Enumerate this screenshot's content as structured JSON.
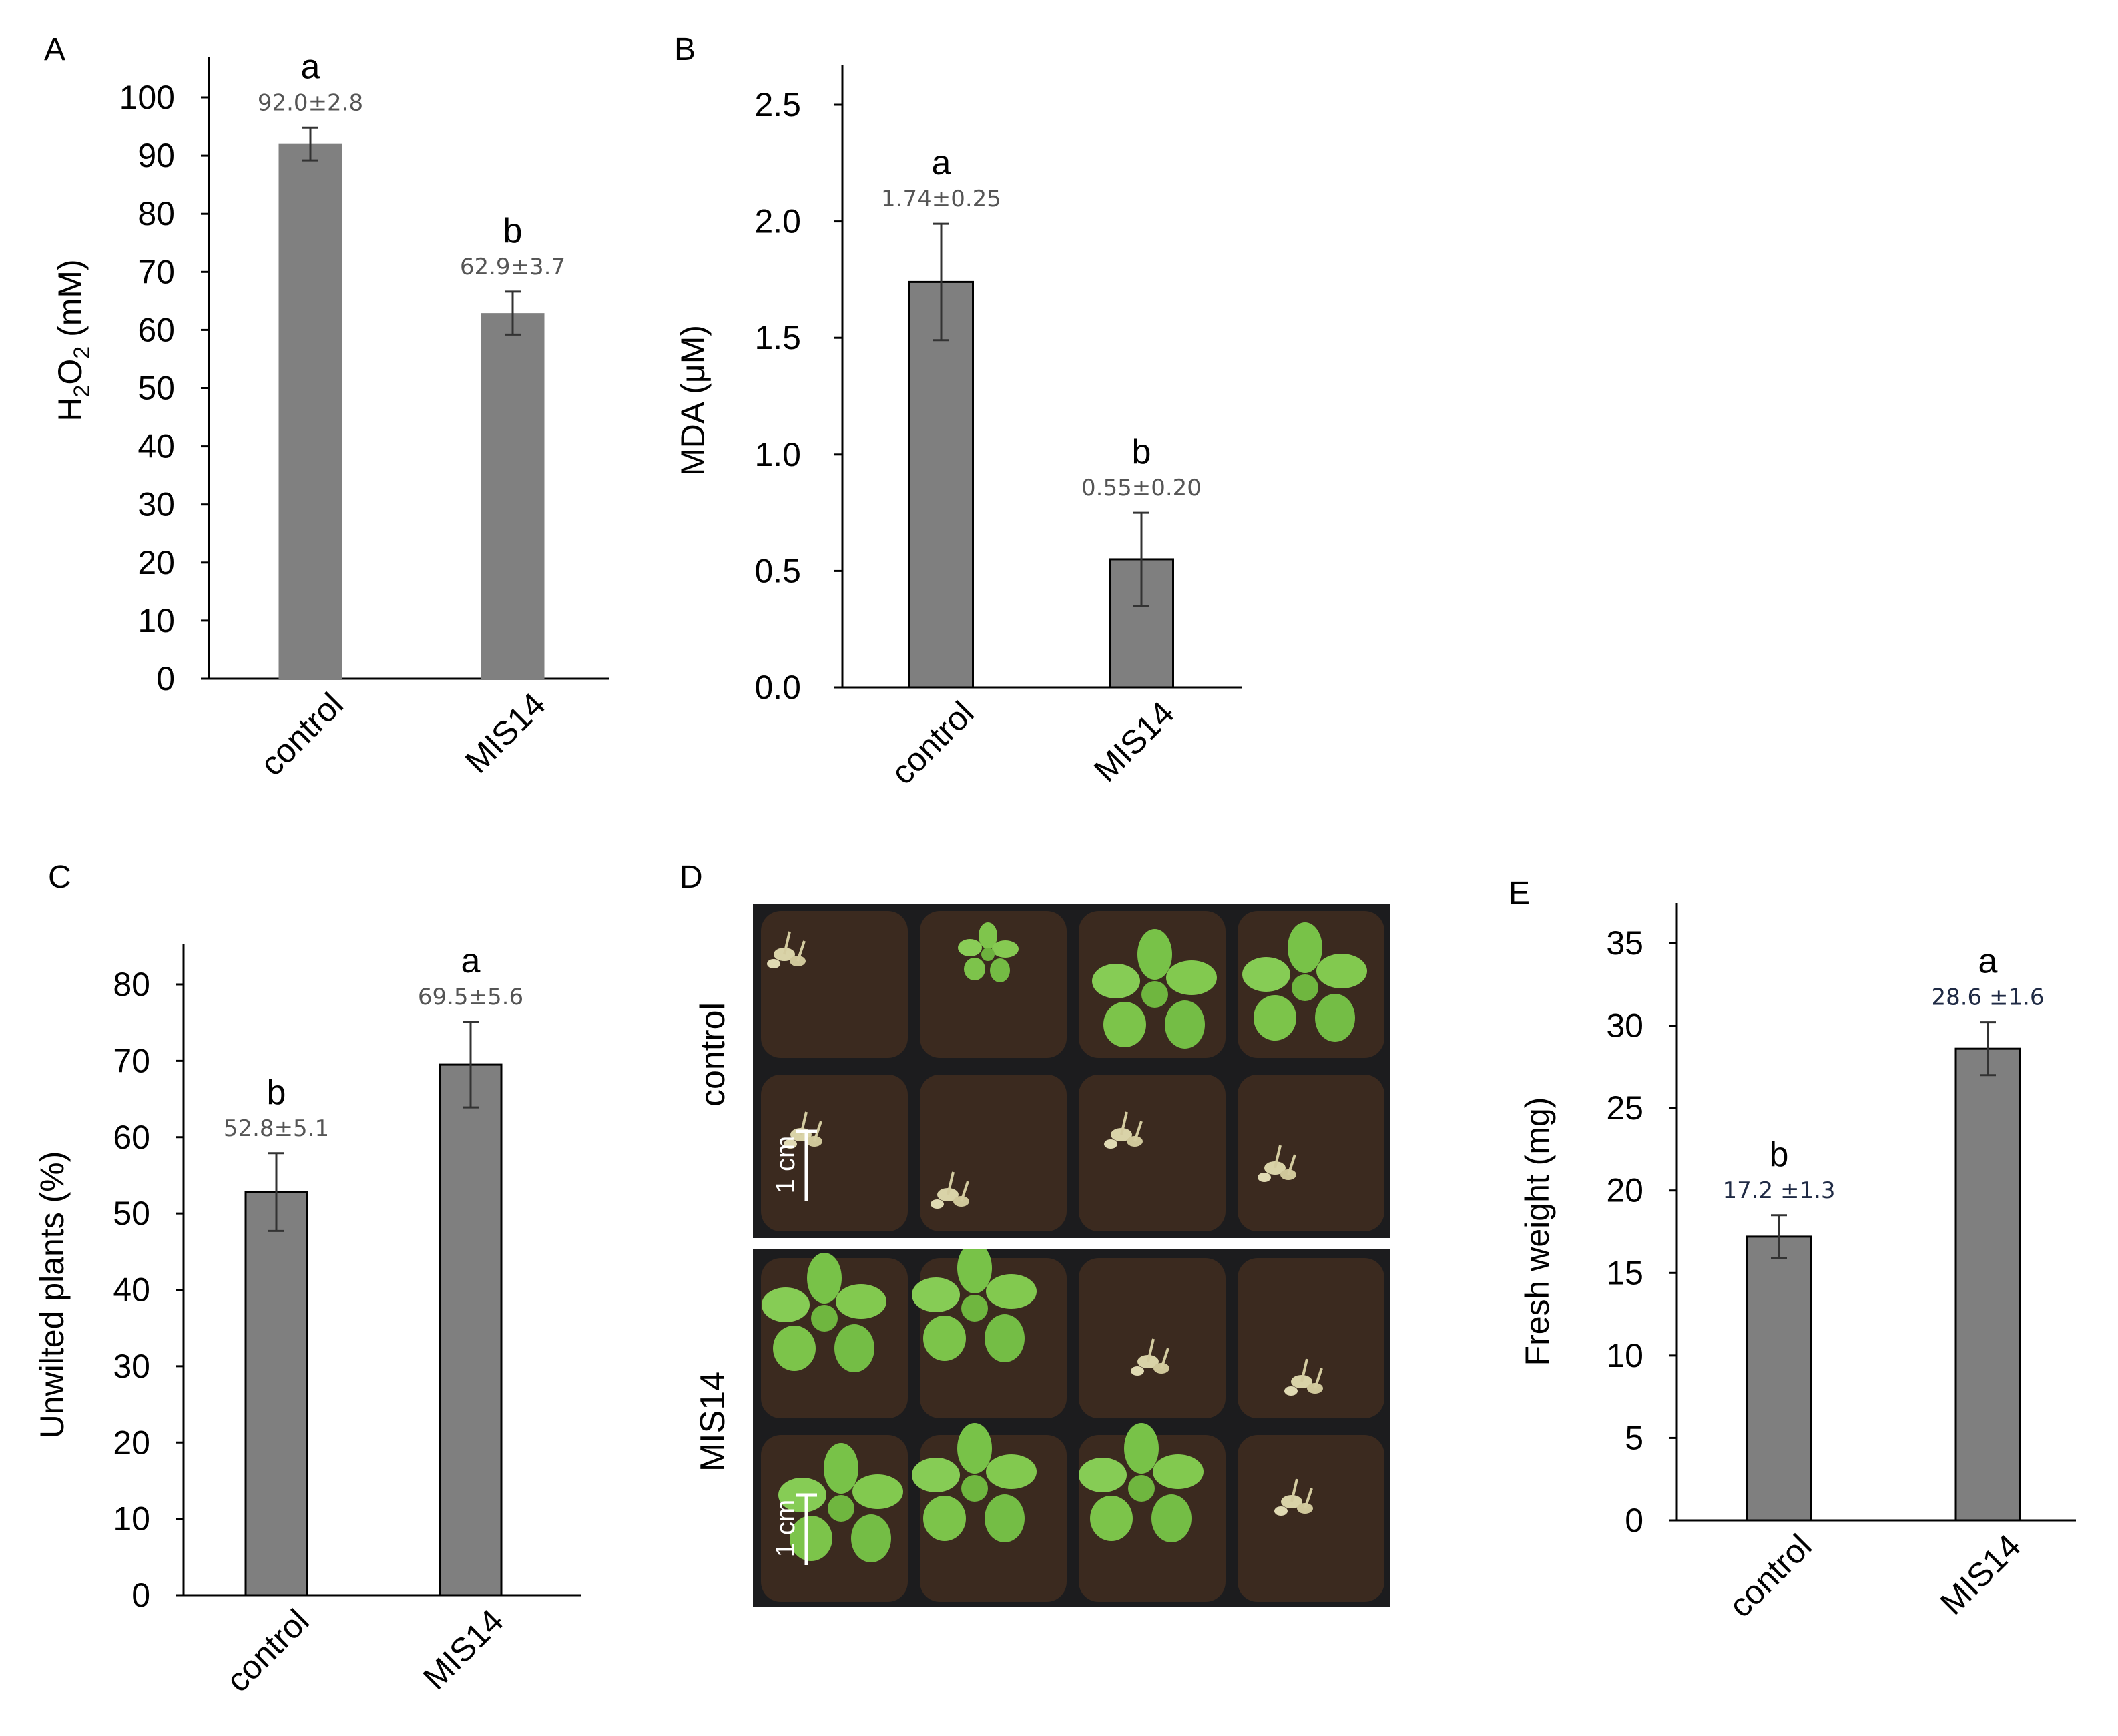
{
  "colors": {
    "bar": "#7f7f7f",
    "soil": "#3b2a1f",
    "tray": "#1c1c1e",
    "leaf": "#7bc14a"
  },
  "panels": {
    "A": "A",
    "B": "B",
    "C": "C",
    "D": "D",
    "E": "E"
  },
  "photo": {
    "row_labels": [
      "control",
      "MIS14"
    ],
    "scale_bar": "1 cm"
  },
  "chart_data": [
    {
      "panel": "A",
      "type": "bar",
      "categories": [
        "control",
        "MIS14"
      ],
      "values": [
        92.0,
        62.9
      ],
      "errors": [
        2.8,
        3.7
      ],
      "value_labels": [
        "92.0±2.8",
        "62.9±3.7"
      ],
      "significance": [
        "a",
        "b"
      ],
      "ylabel_main": "H",
      "ylabel_sub1": "2",
      "ylabel_mid": "O",
      "ylabel_sub2": "2",
      "ylabel_tail": " (mM)",
      "ylim": [
        0,
        100
      ],
      "yticks": [
        "0",
        "10",
        "20",
        "30",
        "40",
        "50",
        "60",
        "70",
        "80",
        "90",
        "100"
      ],
      "ytick_values": [
        0,
        10,
        20,
        30,
        40,
        50,
        60,
        70,
        80,
        90,
        100
      ]
    },
    {
      "panel": "B",
      "type": "bar",
      "categories": [
        "control",
        "MIS14"
      ],
      "values": [
        1.74,
        0.55
      ],
      "errors": [
        0.25,
        0.2
      ],
      "value_labels": [
        "1.74±0.25",
        "0.55±0.20"
      ],
      "significance": [
        "a",
        "b"
      ],
      "ylabel": "MDA (μM)",
      "ylim": [
        0,
        2.5
      ],
      "yticks": [
        "0.0",
        "0.5",
        "1.0",
        "1.5",
        "2.0",
        "2.5"
      ],
      "ytick_values": [
        0,
        0.5,
        1.0,
        1.5,
        2.0,
        2.5
      ]
    },
    {
      "panel": "C",
      "type": "bar",
      "categories": [
        "control",
        "MIS14"
      ],
      "values": [
        52.8,
        69.5
      ],
      "errors": [
        5.1,
        5.6
      ],
      "value_labels": [
        "52.8±5.1",
        "69.5±5.6"
      ],
      "significance": [
        "b",
        "a"
      ],
      "ylabel": "Unwilted plants (%)",
      "ylim": [
        0,
        80
      ],
      "yticks": [
        "0",
        "10",
        "20",
        "30",
        "40",
        "50",
        "60",
        "70",
        "80"
      ],
      "ytick_values": [
        0,
        10,
        20,
        30,
        40,
        50,
        60,
        70,
        80
      ]
    },
    {
      "panel": "E",
      "type": "bar",
      "categories": [
        "control",
        "MIS14"
      ],
      "values": [
        17.2,
        28.6
      ],
      "errors": [
        1.3,
        1.6
      ],
      "value_labels": [
        "17.2 ±1.3",
        "28.6 ±1.6"
      ],
      "significance": [
        "b",
        "a"
      ],
      "ylabel": "Fresh weight (mg)",
      "ylim": [
        0,
        35
      ],
      "yticks": [
        "0",
        "5",
        "10",
        "15",
        "20",
        "25",
        "30",
        "35"
      ],
      "ytick_values": [
        0,
        5,
        10,
        15,
        20,
        25,
        30,
        35
      ]
    }
  ]
}
